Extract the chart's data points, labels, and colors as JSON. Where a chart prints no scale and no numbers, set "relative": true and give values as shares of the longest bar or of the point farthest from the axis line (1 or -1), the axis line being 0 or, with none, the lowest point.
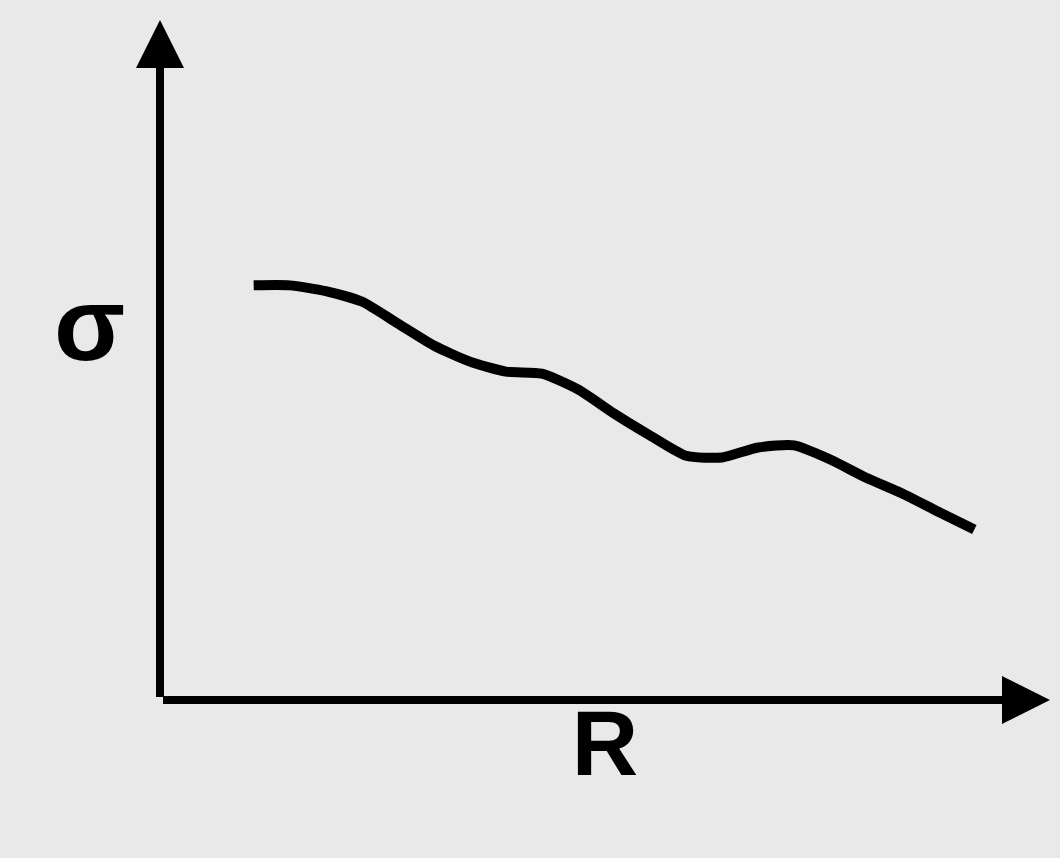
{
  "chart_data": {
    "type": "line",
    "relative": true,
    "xlabel": "R",
    "ylabel": "σ",
    "color": "#000000",
    "marker": "none",
    "line_style": "solid",
    "grid": false,
    "categories": [
      null,
      null,
      null,
      null,
      null,
      null,
      null,
      null,
      null,
      null,
      null,
      null,
      null,
      null,
      null,
      null,
      null,
      null,
      null,
      null,
      null
    ],
    "values": [
      1.0,
      1.0,
      0.986,
      0.961,
      0.908,
      0.855,
      0.816,
      0.792,
      0.787,
      0.749,
      0.691,
      0.638,
      0.589,
      0.585,
      0.609,
      0.614,
      0.58,
      0.536,
      0.498,
      0.454,
      0.411
    ]
  }
}
